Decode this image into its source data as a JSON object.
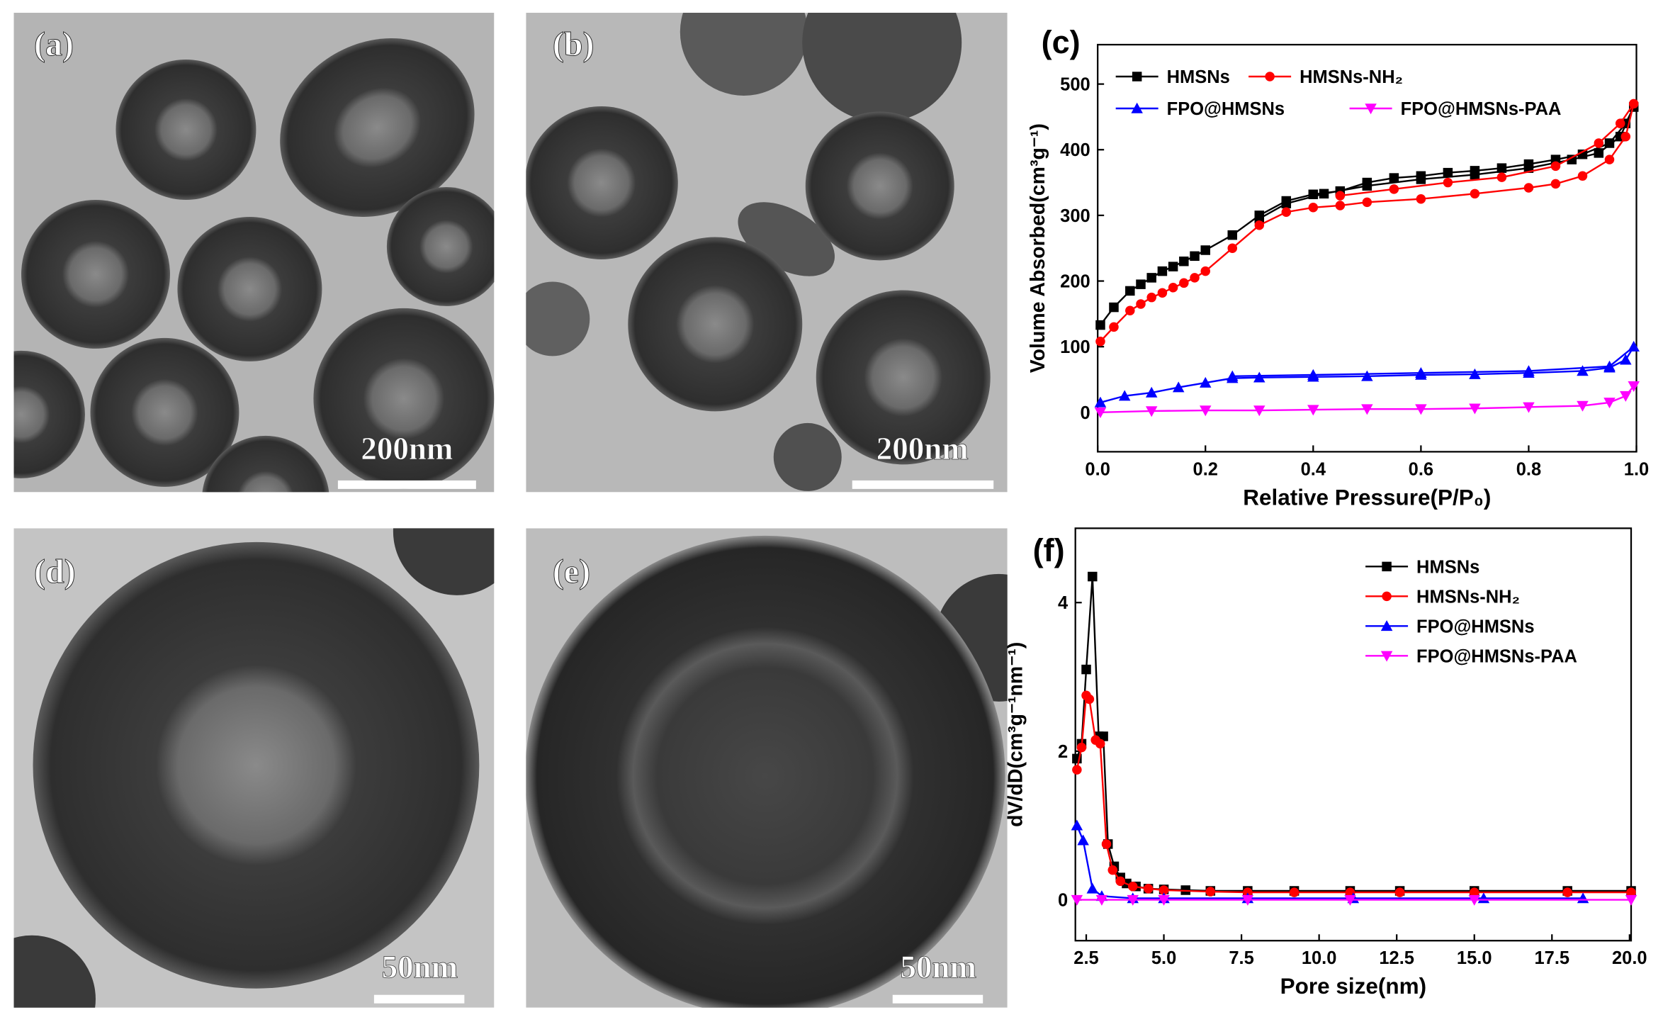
{
  "panels": [
    {
      "label": "(a)",
      "scale_bar": "200nm"
    },
    {
      "label": "(b)",
      "scale_bar": "200nm"
    },
    {
      "label": "(d)",
      "scale_bar": "50nm"
    },
    {
      "label": "(e)",
      "scale_bar": "50nm"
    }
  ],
  "chart_data": [
    {
      "type": "line",
      "label": "(c)",
      "x_label": "Relative Pressure(P/P₀)",
      "y_label": "Volume Absorbed(cm³g⁻¹)",
      "xlim": [
        0,
        1
      ],
      "ylim": [
        -60,
        560
      ],
      "xticks": [
        {
          "value": 0,
          "label": "0.0"
        },
        {
          "value": 0.2,
          "label": "0.2"
        },
        {
          "value": 0.4,
          "label": "0.4"
        },
        {
          "value": 0.6,
          "label": "0.6"
        },
        {
          "value": 0.8,
          "label": "0.8"
        },
        {
          "value": 1,
          "label": "1.0"
        }
      ],
      "yticks": [
        0,
        100,
        200,
        300,
        400,
        500
      ],
      "legend": "upper-left",
      "series": [
        {
          "name": "HMSNs",
          "color": "#000000",
          "marker": "square",
          "x": [
            0.005,
            0.03,
            0.06,
            0.08,
            0.1,
            0.12,
            0.14,
            0.16,
            0.18,
            0.2,
            0.25,
            0.3,
            0.35,
            0.4,
            0.45,
            0.5,
            0.55,
            0.6,
            0.65,
            0.7,
            0.75,
            0.8,
            0.85,
            0.9,
            0.95,
            0.98,
            0.995,
            0.97,
            0.93,
            0.88,
            0.8,
            0.7,
            0.6,
            0.5,
            0.42,
            0.35,
            0.3
          ],
          "values": [
            133,
            160,
            185,
            195,
            205,
            215,
            222,
            230,
            238,
            247,
            270,
            300,
            322,
            332,
            337,
            350,
            357,
            360,
            365,
            368,
            372,
            378,
            385,
            393,
            410,
            440,
            465,
            420,
            395,
            385,
            372,
            362,
            355,
            345,
            333,
            318,
            295
          ]
        },
        {
          "name": "HMSNs-NH₂",
          "color": "#ff0000",
          "marker": "circle",
          "x": [
            0.005,
            0.03,
            0.06,
            0.08,
            0.1,
            0.12,
            0.14,
            0.16,
            0.18,
            0.2,
            0.25,
            0.3,
            0.35,
            0.4,
            0.45,
            0.5,
            0.6,
            0.7,
            0.8,
            0.85,
            0.9,
            0.95,
            0.98,
            0.995,
            0.97,
            0.93,
            0.85,
            0.75,
            0.65,
            0.55,
            0.45
          ],
          "values": [
            108,
            130,
            155,
            165,
            175,
            182,
            190,
            197,
            205,
            215,
            250,
            285,
            305,
            312,
            315,
            320,
            325,
            333,
            342,
            348,
            360,
            385,
            420,
            470,
            440,
            410,
            375,
            358,
            350,
            340,
            330
          ]
        },
        {
          "name": "FPO@HMSNs",
          "color": "#0000ff",
          "marker": "triangle-up",
          "x": [
            0.005,
            0.05,
            0.1,
            0.15,
            0.2,
            0.25,
            0.3,
            0.4,
            0.5,
            0.6,
            0.7,
            0.8,
            0.9,
            0.95,
            0.98,
            0.995,
            0.95,
            0.8,
            0.6,
            0.4,
            0.25
          ],
          "values": [
            15,
            25,
            30,
            38,
            45,
            52,
            53,
            54,
            55,
            57,
            58,
            60,
            63,
            68,
            80,
            100,
            70,
            63,
            60,
            57,
            55
          ]
        },
        {
          "name": "FPO@HMSNs-PAA",
          "color": "#ff00ff",
          "marker": "triangle-down",
          "x": [
            0.005,
            0.1,
            0.2,
            0.3,
            0.4,
            0.5,
            0.6,
            0.7,
            0.8,
            0.9,
            0.95,
            0.98,
            0.995
          ],
          "values": [
            0,
            2,
            3,
            3,
            4,
            5,
            5,
            6,
            8,
            10,
            15,
            25,
            40
          ]
        }
      ]
    },
    {
      "type": "line",
      "label": "(f)",
      "x_label": "Pore size(nm)",
      "y_label": "dV/dD(cm³g⁻¹nm⁻¹)",
      "xlim": [
        2.15,
        20.05
      ],
      "ylim": [
        -0.55,
        5
      ],
      "xticks": [
        {
          "value": 2.5,
          "label": "2.5"
        },
        {
          "value": 5,
          "label": "5.0"
        },
        {
          "value": 7.5,
          "label": "7.5"
        },
        {
          "value": 10,
          "label": "10.0"
        },
        {
          "value": 12.5,
          "label": "12.5"
        },
        {
          "value": 15,
          "label": "15.0"
        },
        {
          "value": 17.5,
          "label": "17.5"
        },
        {
          "value": 20,
          "label": "20.0"
        }
      ],
      "yticks": [
        0,
        2,
        4
      ],
      "legend": "upper-right",
      "series": [
        {
          "name": "HMSNs",
          "color": "#000000",
          "marker": "square",
          "x": [
            2.2,
            2.35,
            2.5,
            2.7,
            2.9,
            3.05,
            3.2,
            3.4,
            3.6,
            3.8,
            4.1,
            4.5,
            5,
            5.7,
            6.5,
            7.7,
            9.2,
            11,
            12.6,
            15,
            18,
            20.05
          ],
          "values": [
            1.9,
            2.1,
            3.1,
            4.35,
            2.2,
            2.2,
            0.75,
            0.45,
            0.3,
            0.22,
            0.18,
            0.15,
            0.14,
            0.13,
            0.12,
            0.12,
            0.12,
            0.12,
            0.12,
            0.12,
            0.12,
            0.12
          ]
        },
        {
          "name": "HMSNs-NH₂",
          "color": "#ff0000",
          "marker": "circle",
          "x": [
            2.2,
            2.35,
            2.5,
            2.6,
            2.8,
            2.95,
            3.15,
            3.35,
            3.6,
            4,
            4.5,
            5,
            6.5,
            7.7,
            9.2,
            11,
            12.6,
            15,
            18,
            20.05
          ],
          "values": [
            1.75,
            2.05,
            2.75,
            2.7,
            2.15,
            2.1,
            0.75,
            0.4,
            0.25,
            0.18,
            0.15,
            0.13,
            0.11,
            0.1,
            0.1,
            0.1,
            0.1,
            0.1,
            0.1,
            0.1
          ]
        },
        {
          "name": "FPO@HMSNs",
          "color": "#0000ff",
          "marker": "triangle-up",
          "x": [
            2.2,
            2.4,
            2.7,
            3,
            4,
            5,
            7.7,
            11.1,
            15.3,
            18.5
          ],
          "values": [
            1.0,
            0.8,
            0.15,
            0.05,
            0.02,
            0.02,
            0.02,
            0.02,
            0.02,
            0.02
          ]
        },
        {
          "name": "FPO@HMSNs-PAA",
          "color": "#ff00ff",
          "marker": "triangle-down",
          "x": [
            2.2,
            3,
            4,
            5,
            7.7,
            11,
            15,
            20.05
          ],
          "values": [
            0,
            0,
            0,
            0,
            0,
            0,
            0,
            0
          ]
        }
      ]
    }
  ]
}
